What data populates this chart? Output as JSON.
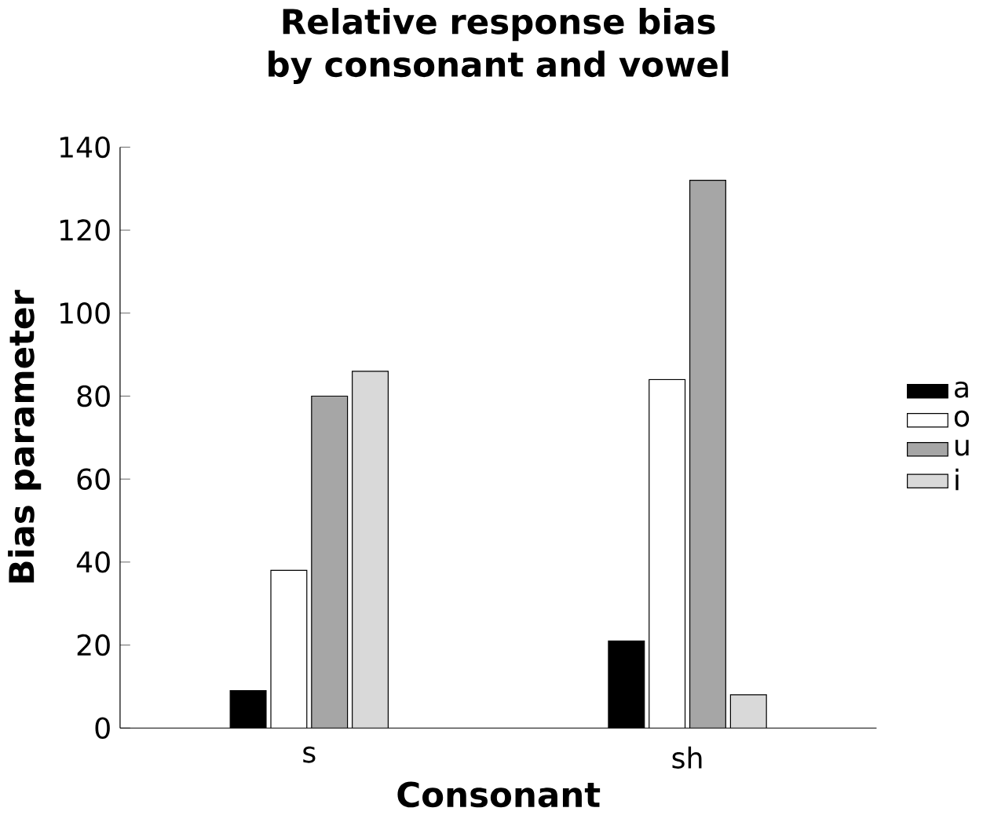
{
  "chart_data": {
    "type": "bar",
    "title": "Relative response bias by consonant and vowel",
    "xlabel": "Consonant",
    "ylabel": "Bias parameter",
    "categories": [
      "s",
      "sh"
    ],
    "series": [
      {
        "name": "a",
        "color": "#000000",
        "values": [
          9,
          21
        ]
      },
      {
        "name": "o",
        "color": "#ffffff",
        "values": [
          38,
          84
        ]
      },
      {
        "name": "u",
        "color": "#a6a6a6",
        "values": [
          80,
          132
        ]
      },
      {
        "name": "i",
        "color": "#d9d9d9",
        "values": [
          86,
          8
        ]
      }
    ],
    "ylim": [
      0,
      140
    ],
    "yticks": [
      0,
      20,
      40,
      60,
      80,
      100,
      120,
      140
    ],
    "grid": false,
    "legend": "right"
  }
}
